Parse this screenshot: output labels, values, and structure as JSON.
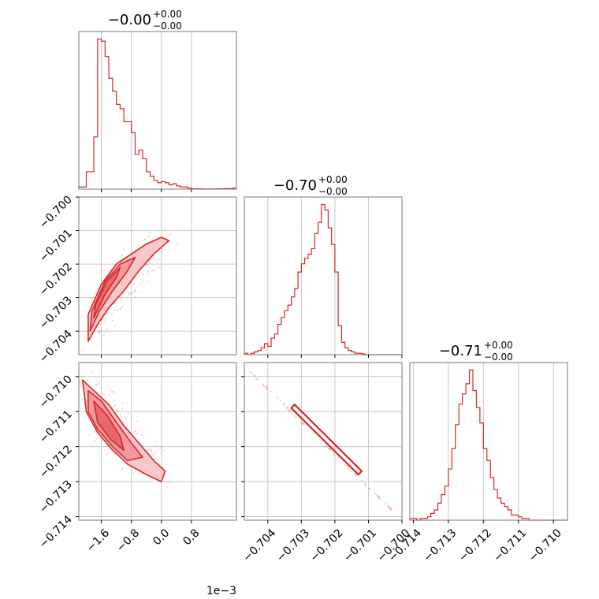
{
  "chart_data": {
    "type": "corner",
    "color": "#d62728",
    "fill_colors": [
      "#f6c3c4",
      "#ee9598",
      "#e36467"
    ],
    "grid": true,
    "offset_label": "1e−3",
    "parameters": [
      {
        "title_main": "−0.00",
        "title_plus": "+0.00",
        "title_minus": "−0.00",
        "range": [
          -0.0022,
          0.002
        ],
        "ticks": [
          -0.0016,
          -0.0008,
          0.0,
          0.0008
        ],
        "tick_labels": [
          "−1.6",
          "−0.8",
          "0.0",
          "0.8"
        ],
        "grid_lines": [
          -0.0016,
          -0.0008,
          0.0,
          0.0008
        ]
      },
      {
        "title_main": "−0.70",
        "title_plus": "+0.00",
        "title_minus": "−0.00",
        "range": [
          -0.7047,
          -0.7
        ],
        "ticks": [
          -0.704,
          -0.703,
          -0.702,
          -0.701,
          -0.7
        ],
        "tick_labels": [
          "−0.704",
          "−0.703",
          "−0.702",
          "−0.701",
          "−0.700"
        ],
        "grid_lines": [
          -0.704,
          -0.703,
          -0.702,
          -0.701,
          -0.7
        ]
      },
      {
        "title_main": "−0.71",
        "title_plus": "+0.00",
        "title_minus": "−0.00",
        "range": [
          -0.7141,
          -0.7096
        ],
        "ticks": [
          -0.714,
          -0.713,
          -0.712,
          -0.711,
          -0.71
        ],
        "tick_labels": [
          "−0.714",
          "−0.713",
          "−0.712",
          "−0.711",
          "−0.710"
        ],
        "grid_lines": [
          -0.714,
          -0.713,
          -0.712,
          -0.711,
          -0.71
        ]
      }
    ],
    "hist_1d": [
      {
        "bin_start": -0.0022,
        "bin_width": 0.0001,
        "counts": [
          0.1,
          0.1,
          0.8,
          0.8,
          2.4,
          6.9,
          6.8,
          6.1,
          5.1,
          4.5,
          3.9,
          3.7,
          3.1,
          3.1,
          2.6,
          1.6,
          1.8,
          1.4,
          0.8,
          0.6,
          0.4,
          0.3,
          0.35,
          0.3,
          0.2,
          0.25,
          0.15,
          0.1,
          0.1,
          0.05,
          0.02,
          0.02,
          0.02,
          0.01,
          0.01,
          0.01,
          0.01,
          0.02,
          0.02,
          0.03,
          0.03,
          0.05
        ]
      },
      {
        "bin_start": -0.7047,
        "bin_width": 0.0001,
        "counts": [
          0.1,
          0.0,
          0.1,
          0.2,
          0.3,
          0.5,
          0.8,
          0.6,
          1.2,
          1.5,
          2.2,
          2.7,
          3.2,
          3.6,
          4.2,
          4.8,
          6.0,
          6.6,
          7.0,
          7.3,
          7.7,
          8.8,
          9.6,
          10.9,
          10.5,
          9.2,
          8.0,
          6.0,
          2.1,
          0.9,
          0.5,
          0.3,
          0.2,
          0.1,
          0.1,
          0.05,
          0.0,
          0.0,
          0.0,
          0.0,
          0.0,
          0.0,
          0.0,
          0.0,
          0.0,
          0.0,
          0.0
        ]
      },
      {
        "bin_start": -0.7141,
        "bin_width": 0.0001,
        "counts": [
          0.1,
          0.1,
          0.0,
          0.1,
          0.1,
          0.2,
          0.4,
          0.6,
          1.0,
          1.5,
          2.0,
          3.0,
          4.2,
          5.6,
          6.8,
          7.4,
          8.0,
          8.8,
          7.6,
          6.6,
          5.7,
          4.2,
          3.5,
          2.5,
          1.8,
          1.3,
          1.0,
          0.8,
          0.6,
          0.3,
          0.3,
          0.2,
          0.1,
          0.1,
          0.0,
          0.0,
          0.0,
          0.0,
          0.0,
          0.0,
          0.0,
          0.0,
          0.0,
          0.0,
          0.0
        ]
      }
    ],
    "panels_2d": [
      {
        "x_param": 0,
        "y_param": 1,
        "relation": "curved",
        "contours": [
          [
            [
              -0.00195,
              -0.7035
            ],
            [
              -0.0016,
              -0.7026
            ],
            [
              -0.0012,
              -0.702
            ],
            [
              -0.0008,
              -0.7017
            ],
            [
              -0.0004,
              -0.7014
            ],
            [
              0.0,
              -0.7012
            ],
            [
              0.0002,
              -0.7013
            ],
            [
              -0.0002,
              -0.7017
            ],
            [
              -0.0006,
              -0.7022
            ],
            [
              -0.001,
              -0.7028
            ],
            [
              -0.0014,
              -0.7033
            ],
            [
              -0.0017,
              -0.7038
            ],
            [
              -0.00195,
              -0.7043
            ]
          ],
          [
            [
              -0.00185,
              -0.7034
            ],
            [
              -0.0015,
              -0.7025
            ],
            [
              -0.0011,
              -0.702
            ],
            [
              -0.0007,
              -0.7018
            ],
            [
              -0.0009,
              -0.7022
            ],
            [
              -0.0013,
              -0.7028
            ],
            [
              -0.00165,
              -0.7034
            ],
            [
              -0.0019,
              -0.704
            ]
          ],
          [
            [
              -0.00175,
              -0.7032
            ],
            [
              -0.00145,
              -0.7025
            ],
            [
              -0.0011,
              -0.7021
            ],
            [
              -0.0012,
              -0.7024
            ],
            [
              -0.0015,
              -0.7029
            ],
            [
              -0.0018,
              -0.7036
            ]
          ]
        ]
      },
      {
        "x_param": 0,
        "y_param": 2,
        "relation": "curved",
        "contours": [
          [
            [
              -0.0021,
              -0.7101
            ],
            [
              -0.0018,
              -0.7104
            ],
            [
              -0.0014,
              -0.7108
            ],
            [
              -0.001,
              -0.7114
            ],
            [
              -0.0006,
              -0.7119
            ],
            [
              -0.0002,
              -0.7124
            ],
            [
              0.0001,
              -0.7127
            ],
            [
              0.0,
              -0.713
            ],
            [
              -0.0004,
              -0.7128
            ],
            [
              -0.0009,
              -0.7125
            ],
            [
              -0.0013,
              -0.7121
            ],
            [
              -0.0017,
              -0.7116
            ],
            [
              -0.002,
              -0.711
            ]
          ],
          [
            [
              -0.00195,
              -0.7104
            ],
            [
              -0.0016,
              -0.7107
            ],
            [
              -0.0012,
              -0.7113
            ],
            [
              -0.0008,
              -0.7119
            ],
            [
              -0.0005,
              -0.7123
            ],
            [
              -0.0009,
              -0.7124
            ],
            [
              -0.0013,
              -0.712
            ],
            [
              -0.0017,
              -0.7115
            ],
            [
              -0.00195,
              -0.711
            ]
          ],
          [
            [
              -0.0018,
              -0.7107
            ],
            [
              -0.00145,
              -0.7111
            ],
            [
              -0.0011,
              -0.7117
            ],
            [
              -0.001,
              -0.7121
            ],
            [
              -0.00135,
              -0.7118
            ],
            [
              -0.0017,
              -0.7113
            ]
          ]
        ]
      },
      {
        "x_param": 1,
        "y_param": 2,
        "relation": "linear",
        "line": [
          [
            -0.7046,
            -0.7098
          ],
          [
            -0.7002,
            -0.7139
          ]
        ],
        "contours": [
          [
            [
              -0.7033,
              -0.7109
            ],
            [
              -0.7013,
              -0.7128
            ],
            [
              -0.7012,
              -0.7127
            ],
            [
              -0.7032,
              -0.7108
            ]
          ]
        ]
      }
    ]
  }
}
